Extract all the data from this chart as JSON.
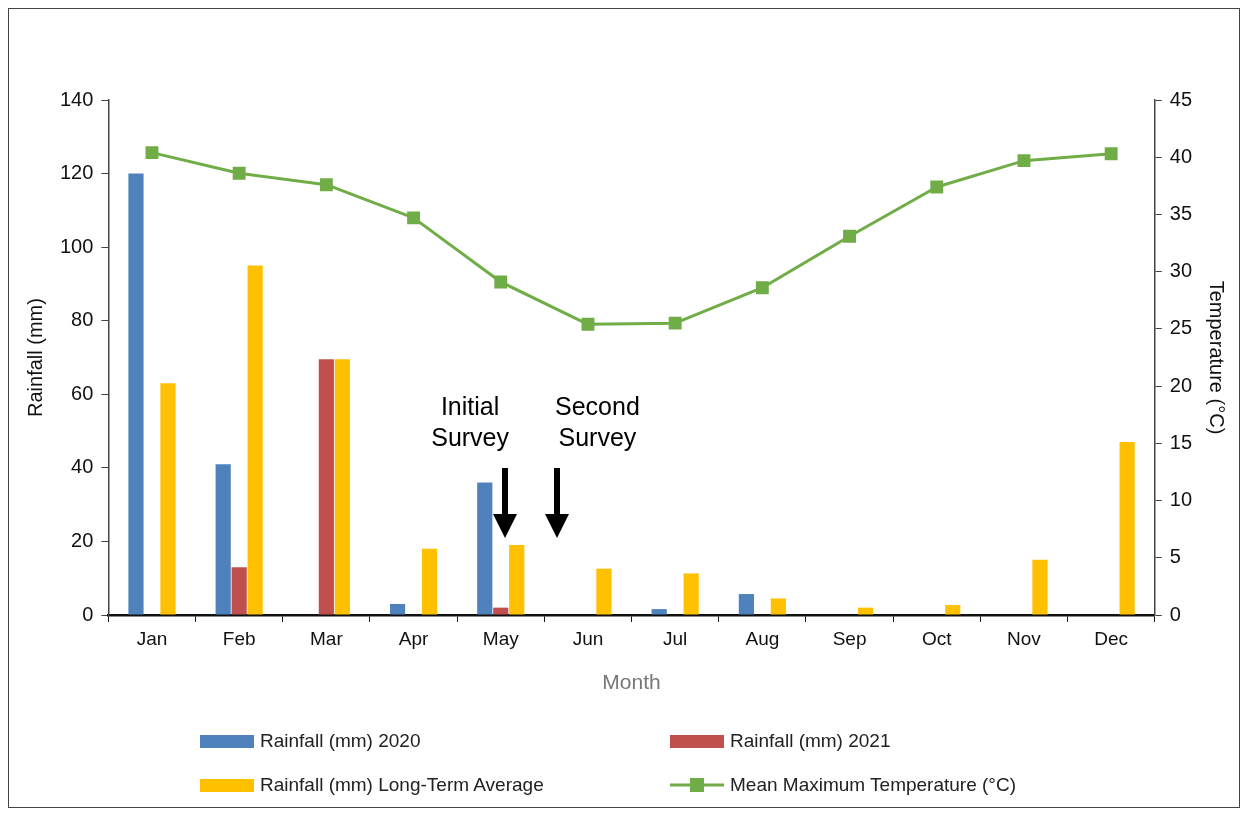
{
  "chart_data": {
    "type": "bar",
    "xlabel": "Month",
    "ylabel": "Rainfall (mm)",
    "y2label": "Temperature (°C)",
    "categories": [
      "Jan",
      "Feb",
      "Mar",
      "Apr",
      "May",
      "Jun",
      "Jul",
      "Aug",
      "Sep",
      "Oct",
      "Nov",
      "Dec"
    ],
    "series": [
      {
        "name": "Rainfall (mm) 2020",
        "color": "#4f81bd",
        "values": [
          120,
          41,
          0,
          3,
          36,
          0,
          1.6,
          5.7,
          0,
          0,
          0,
          0
        ]
      },
      {
        "name": "Rainfall (mm) 2021",
        "color": "#c0504d",
        "values": [
          0,
          13,
          69.5,
          0,
          2,
          0,
          0,
          0,
          0,
          0,
          0,
          0
        ]
      },
      {
        "name": "Rainfall (mm) Long-Term Average",
        "color": "#ffc000",
        "values": [
          63,
          95,
          69.5,
          18,
          19,
          12.6,
          11.3,
          4.5,
          2,
          2.7,
          15,
          47
        ]
      },
      {
        "name": "Mean Maximum Temperature (°C)",
        "type": "line",
        "axis": "y2",
        "color": "#70ad47",
        "values": [
          40.4,
          38.6,
          37.6,
          34.7,
          29.1,
          25.4,
          25.5,
          28.6,
          33.1,
          37.4,
          39.7,
          40.3
        ]
      }
    ],
    "ylim": [
      0,
      140
    ],
    "yticks": [
      0,
      20,
      40,
      60,
      80,
      100,
      120,
      140
    ],
    "y2lim": [
      0,
      45
    ],
    "y2ticks": [
      0,
      5,
      10,
      15,
      20,
      25,
      30,
      35,
      40,
      45
    ],
    "grid": false,
    "legend": "bottom",
    "marker": "square",
    "line_style": "solid",
    "annotations": [
      "Initial Survey",
      "Second Survey"
    ]
  }
}
